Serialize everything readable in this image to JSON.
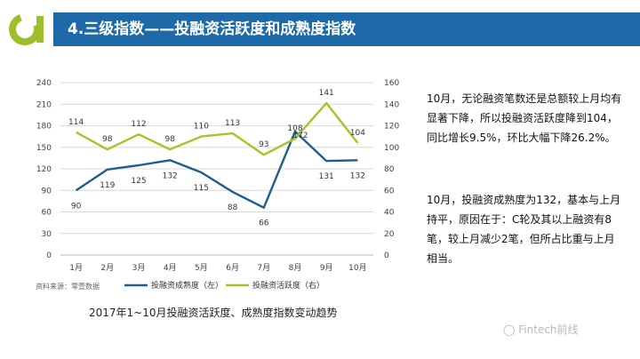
{
  "header": {
    "title": "4.三级指数——投融资活跃度和成熟度指数",
    "accent_color": "#1e6aa8",
    "logo_color": "#9cbf2b"
  },
  "chart_data": {
    "type": "line",
    "categories": [
      "1月",
      "2月",
      "3月",
      "4月",
      "5月",
      "6月",
      "7月",
      "8月",
      "9月",
      "10月"
    ],
    "y_left": {
      "min": 0,
      "max": 240,
      "step": 30,
      "ticks": [
        "0",
        "30",
        "60",
        "90",
        "120",
        "150",
        "180",
        "210",
        "240"
      ]
    },
    "y_right": {
      "min": 0,
      "max": 160,
      "step": 20,
      "ticks": [
        "0",
        "20",
        "40",
        "60",
        "80",
        "100",
        "120",
        "140",
        "160"
      ]
    },
    "grid": true,
    "legend_position": "bottom",
    "series": [
      {
        "name": "投融资成熟度（左）",
        "axis": "left",
        "color": "#1f5d8c",
        "values": [
          90,
          119,
          125,
          132,
          115,
          88,
          66,
          172,
          131,
          132
        ],
        "labels": [
          "90",
          "119",
          "125",
          "132",
          "115",
          "88",
          "66",
          "172",
          "131",
          "132"
        ]
      },
      {
        "name": "投融资活跃度（右）",
        "axis": "right",
        "color": "#a5c42a",
        "values": [
          114,
          98,
          112,
          98,
          110,
          113,
          93,
          108,
          141,
          104
        ],
        "labels": [
          "114",
          "98",
          "112",
          "98",
          "110",
          "113",
          "93",
          "108",
          "141",
          "104"
        ]
      }
    ],
    "source": "资料来源：零壹数据"
  },
  "caption": "2017年1~10月投融资活跃度、成熟度指数变动趋势",
  "text": {
    "para1": "10月，无论融资笔数还是总额较上月均有显著下降，所以投融资活跃度降到104，同比增长9.5%，环比大幅下降26.2%。",
    "para2": "10月，投融资成熟度为132，基本与上月持平，原因在于：C轮及其以上融资有8笔，较上月减少2笔，但所占比重与上月相当。"
  },
  "watermark": "Fintech前线"
}
